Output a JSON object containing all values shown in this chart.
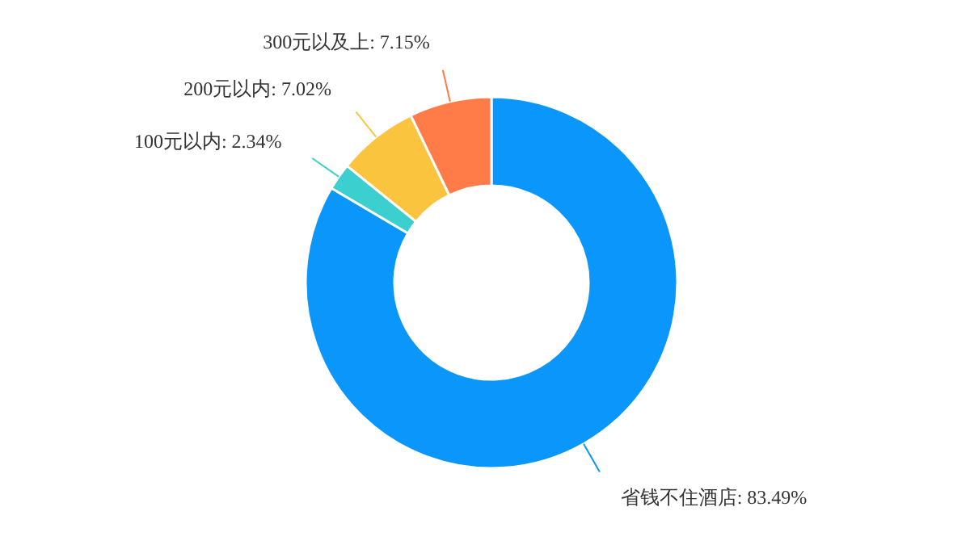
{
  "chart_data": {
    "type": "donut",
    "categories": [
      "省钱不住酒店",
      "100元以内",
      "200元以内",
      "300元以及上"
    ],
    "values": [
      83.49,
      2.34,
      7.02,
      7.15
    ],
    "colors": [
      "#0a96fa",
      "#3ccfcf",
      "#fbc43e",
      "#ff7b48"
    ],
    "value_labels": [
      "83.49%",
      "2.34%",
      "7.02%",
      "7.15%"
    ]
  }
}
